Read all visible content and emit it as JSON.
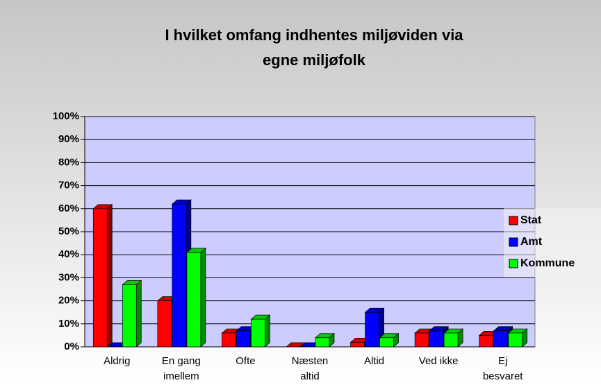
{
  "chart_data": {
    "type": "bar3d",
    "title": "I hvilket omfang indhentes miljøviden via egne miljøfolk",
    "categories": [
      "Aldrig",
      "En gang imellem",
      "Ofte",
      "Næsten altid",
      "Altid",
      "Ved ikke",
      "Ej besvaret"
    ],
    "series": [
      {
        "name": "Stat",
        "color": "#ff0000",
        "values": [
          60,
          20,
          6,
          0,
          2,
          6,
          5
        ]
      },
      {
        "name": "Amt",
        "color": "#0000ff",
        "values": [
          0,
          62,
          7,
          0,
          15,
          7,
          7
        ]
      },
      {
        "name": "Kommune",
        "color": "#00ff00",
        "values": [
          27,
          41,
          12,
          4,
          4,
          6,
          6
        ]
      }
    ],
    "ylim": [
      0,
      100
    ],
    "yticks": [
      {
        "value": 0,
        "label": "0%"
      },
      {
        "value": 10,
        "label": "10%"
      },
      {
        "value": 20,
        "label": "20%"
      },
      {
        "value": 30,
        "label": "30%"
      },
      {
        "value": 40,
        "label": "40%"
      },
      {
        "value": 50,
        "label": "50%"
      },
      {
        "value": 60,
        "label": "60%"
      },
      {
        "value": 70,
        "label": "70%"
      },
      {
        "value": 80,
        "label": "80%"
      },
      {
        "value": 90,
        "label": "90%"
      },
      {
        "value": 100,
        "label": "100%"
      }
    ],
    "grid": true,
    "legend": "right"
  }
}
